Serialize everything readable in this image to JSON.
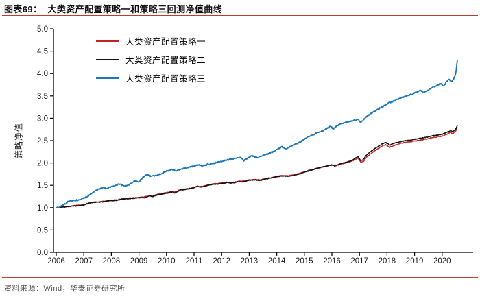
{
  "title": {
    "text": "图表69：  大类资产配置策略一和策略三回测净值曲线"
  },
  "footer": {
    "text": "资料来源：Wind，华泰证券研究所"
  },
  "colors": {
    "rule_red": "#be3c2d",
    "strategy1_red": "#c02420",
    "strategy2_black": "#111111",
    "strategy3_blue": "#1f77b4",
    "axis": "#000000"
  },
  "chart_data": {
    "type": "line",
    "title": "大类资产配置策略一和策略三回测净值曲线",
    "xlabel": "",
    "ylabel": "策略净值",
    "xlim": [
      2005.9,
      2021.1
    ],
    "ylim": [
      0.0,
      5.0
    ],
    "xticks": [
      2006,
      2007,
      2008,
      2009,
      2010,
      2011,
      2012,
      2013,
      2014,
      2015,
      2016,
      2017,
      2018,
      2019,
      2020
    ],
    "yticks": [
      0.0,
      0.5,
      1.0,
      1.5,
      2.0,
      2.5,
      3.0,
      3.5,
      4.0,
      4.5,
      5.0
    ],
    "grid": false,
    "legend_position": "upper-left",
    "series": [
      {
        "key": "strategy-1",
        "name": "大类资产配置策略一",
        "color": "#c02420",
        "width": 1.5,
        "jitter": 0.008,
        "points": [
          [
            2006.0,
            1.0
          ],
          [
            2006.25,
            1.01
          ],
          [
            2006.5,
            1.03
          ],
          [
            2006.75,
            1.05
          ],
          [
            2007.0,
            1.07
          ],
          [
            2007.2,
            1.11
          ],
          [
            2007.4,
            1.13
          ],
          [
            2007.6,
            1.13
          ],
          [
            2007.8,
            1.15
          ],
          [
            2008.0,
            1.17
          ],
          [
            2008.2,
            1.17
          ],
          [
            2008.4,
            1.2
          ],
          [
            2008.6,
            1.21
          ],
          [
            2008.8,
            1.22
          ],
          [
            2009.0,
            1.23
          ],
          [
            2009.2,
            1.24
          ],
          [
            2009.4,
            1.27
          ],
          [
            2009.5,
            1.27
          ],
          [
            2009.7,
            1.3
          ],
          [
            2009.9,
            1.32
          ],
          [
            2010.0,
            1.34
          ],
          [
            2010.2,
            1.36
          ],
          [
            2010.3,
            1.35
          ],
          [
            2010.5,
            1.4
          ],
          [
            2010.7,
            1.42
          ],
          [
            2010.9,
            1.44
          ],
          [
            2011.0,
            1.46
          ],
          [
            2011.1,
            1.48
          ],
          [
            2011.3,
            1.47
          ],
          [
            2011.5,
            1.51
          ],
          [
            2011.7,
            1.53
          ],
          [
            2011.9,
            1.54
          ],
          [
            2012.0,
            1.55
          ],
          [
            2012.2,
            1.57
          ],
          [
            2012.4,
            1.56
          ],
          [
            2012.6,
            1.59
          ],
          [
            2012.8,
            1.59
          ],
          [
            2013.0,
            1.62
          ],
          [
            2013.2,
            1.63
          ],
          [
            2013.4,
            1.62
          ],
          [
            2013.6,
            1.65
          ],
          [
            2013.8,
            1.67
          ],
          [
            2014.0,
            1.7
          ],
          [
            2014.2,
            1.72
          ],
          [
            2014.4,
            1.71
          ],
          [
            2014.6,
            1.73
          ],
          [
            2014.8,
            1.76
          ],
          [
            2015.0,
            1.8
          ],
          [
            2015.2,
            1.84
          ],
          [
            2015.4,
            1.87
          ],
          [
            2015.6,
            1.9
          ],
          [
            2015.8,
            1.93
          ],
          [
            2016.0,
            1.95
          ],
          [
            2016.1,
            1.93
          ],
          [
            2016.3,
            1.97
          ],
          [
            2016.5,
            2.0
          ],
          [
            2016.7,
            2.03
          ],
          [
            2016.85,
            2.08
          ],
          [
            2016.95,
            2.11
          ],
          [
            2017.05,
            2.01
          ],
          [
            2017.15,
            2.04
          ],
          [
            2017.25,
            2.13
          ],
          [
            2017.35,
            2.17
          ],
          [
            2017.5,
            2.25
          ],
          [
            2017.65,
            2.31
          ],
          [
            2017.8,
            2.37
          ],
          [
            2017.95,
            2.41
          ],
          [
            2018.1,
            2.35
          ],
          [
            2018.25,
            2.39
          ],
          [
            2018.4,
            2.42
          ],
          [
            2018.6,
            2.45
          ],
          [
            2018.8,
            2.47
          ],
          [
            2019.0,
            2.49
          ],
          [
            2019.2,
            2.51
          ],
          [
            2019.4,
            2.53
          ],
          [
            2019.6,
            2.56
          ],
          [
            2019.8,
            2.58
          ],
          [
            2020.0,
            2.6
          ],
          [
            2020.15,
            2.64
          ],
          [
            2020.3,
            2.68
          ],
          [
            2020.4,
            2.66
          ],
          [
            2020.5,
            2.72
          ],
          [
            2020.55,
            2.79
          ]
        ]
      },
      {
        "key": "strategy-2",
        "name": "大类资产配置策略二",
        "color": "#111111",
        "width": 1.5,
        "jitter": 0.008,
        "points": [
          [
            2006.0,
            1.0
          ],
          [
            2006.25,
            1.01
          ],
          [
            2006.5,
            1.03
          ],
          [
            2006.75,
            1.04
          ],
          [
            2007.0,
            1.06
          ],
          [
            2007.2,
            1.1
          ],
          [
            2007.4,
            1.12
          ],
          [
            2007.6,
            1.12
          ],
          [
            2007.8,
            1.14
          ],
          [
            2008.0,
            1.16
          ],
          [
            2008.2,
            1.16
          ],
          [
            2008.4,
            1.19
          ],
          [
            2008.6,
            1.2
          ],
          [
            2008.8,
            1.21
          ],
          [
            2009.0,
            1.22
          ],
          [
            2009.2,
            1.22
          ],
          [
            2009.4,
            1.26
          ],
          [
            2009.5,
            1.25
          ],
          [
            2009.7,
            1.29
          ],
          [
            2009.9,
            1.31
          ],
          [
            2010.0,
            1.32
          ],
          [
            2010.2,
            1.35
          ],
          [
            2010.3,
            1.33
          ],
          [
            2010.5,
            1.39
          ],
          [
            2010.7,
            1.41
          ],
          [
            2010.9,
            1.43
          ],
          [
            2011.0,
            1.45
          ],
          [
            2011.1,
            1.47
          ],
          [
            2011.3,
            1.46
          ],
          [
            2011.5,
            1.5
          ],
          [
            2011.7,
            1.52
          ],
          [
            2011.9,
            1.53
          ],
          [
            2012.0,
            1.54
          ],
          [
            2012.2,
            1.56
          ],
          [
            2012.4,
            1.55
          ],
          [
            2012.6,
            1.58
          ],
          [
            2012.8,
            1.58
          ],
          [
            2013.0,
            1.61
          ],
          [
            2013.2,
            1.62
          ],
          [
            2013.4,
            1.61
          ],
          [
            2013.6,
            1.64
          ],
          [
            2013.8,
            1.66
          ],
          [
            2014.0,
            1.69
          ],
          [
            2014.2,
            1.71
          ],
          [
            2014.4,
            1.7
          ],
          [
            2014.6,
            1.72
          ],
          [
            2014.8,
            1.75
          ],
          [
            2015.0,
            1.79
          ],
          [
            2015.2,
            1.83
          ],
          [
            2015.4,
            1.87
          ],
          [
            2015.6,
            1.9
          ],
          [
            2015.8,
            1.93
          ],
          [
            2016.0,
            1.96
          ],
          [
            2016.1,
            1.94
          ],
          [
            2016.3,
            1.98
          ],
          [
            2016.5,
            2.01
          ],
          [
            2016.7,
            2.05
          ],
          [
            2016.85,
            2.11
          ],
          [
            2016.95,
            2.14
          ],
          [
            2017.05,
            2.05
          ],
          [
            2017.15,
            2.08
          ],
          [
            2017.25,
            2.18
          ],
          [
            2017.35,
            2.22
          ],
          [
            2017.5,
            2.3
          ],
          [
            2017.65,
            2.36
          ],
          [
            2017.8,
            2.42
          ],
          [
            2017.95,
            2.46
          ],
          [
            2018.1,
            2.4
          ],
          [
            2018.25,
            2.44
          ],
          [
            2018.4,
            2.46
          ],
          [
            2018.6,
            2.49
          ],
          [
            2018.8,
            2.51
          ],
          [
            2019.0,
            2.53
          ],
          [
            2019.2,
            2.55
          ],
          [
            2019.4,
            2.57
          ],
          [
            2019.6,
            2.6
          ],
          [
            2019.8,
            2.62
          ],
          [
            2020.0,
            2.64
          ],
          [
            2020.15,
            2.68
          ],
          [
            2020.3,
            2.72
          ],
          [
            2020.4,
            2.7
          ],
          [
            2020.5,
            2.76
          ],
          [
            2020.55,
            2.84
          ]
        ]
      },
      {
        "key": "strategy-3",
        "name": "大类资产配置策略三",
        "color": "#1f77b4",
        "width": 1.8,
        "jitter": 0.014,
        "points": [
          [
            2006.0,
            1.0
          ],
          [
            2006.15,
            1.02
          ],
          [
            2006.3,
            1.08
          ],
          [
            2006.45,
            1.14
          ],
          [
            2006.6,
            1.16
          ],
          [
            2006.8,
            1.17
          ],
          [
            2007.0,
            1.21
          ],
          [
            2007.15,
            1.26
          ],
          [
            2007.3,
            1.33
          ],
          [
            2007.5,
            1.4
          ],
          [
            2007.7,
            1.45
          ],
          [
            2007.8,
            1.43
          ],
          [
            2007.95,
            1.46
          ],
          [
            2008.1,
            1.49
          ],
          [
            2008.3,
            1.53
          ],
          [
            2008.5,
            1.47
          ],
          [
            2008.65,
            1.52
          ],
          [
            2008.85,
            1.6
          ],
          [
            2009.0,
            1.58
          ],
          [
            2009.15,
            1.68
          ],
          [
            2009.3,
            1.74
          ],
          [
            2009.45,
            1.7
          ],
          [
            2009.6,
            1.72
          ],
          [
            2009.8,
            1.76
          ],
          [
            2010.0,
            1.82
          ],
          [
            2010.2,
            1.85
          ],
          [
            2010.35,
            1.82
          ],
          [
            2010.5,
            1.86
          ],
          [
            2010.7,
            1.88
          ],
          [
            2010.85,
            1.91
          ],
          [
            2011.0,
            1.93
          ],
          [
            2011.15,
            1.96
          ],
          [
            2011.3,
            1.93
          ],
          [
            2011.5,
            1.97
          ],
          [
            2011.7,
            1.99
          ],
          [
            2011.9,
            2.02
          ],
          [
            2012.1,
            2.05
          ],
          [
            2012.3,
            2.08
          ],
          [
            2012.5,
            2.11
          ],
          [
            2012.7,
            2.12
          ],
          [
            2012.8,
            2.05
          ],
          [
            2012.95,
            2.11
          ],
          [
            2013.1,
            2.16
          ],
          [
            2013.3,
            2.12
          ],
          [
            2013.5,
            2.17
          ],
          [
            2013.7,
            2.21
          ],
          [
            2013.9,
            2.26
          ],
          [
            2014.05,
            2.32
          ],
          [
            2014.2,
            2.36
          ],
          [
            2014.35,
            2.31
          ],
          [
            2014.5,
            2.37
          ],
          [
            2014.7,
            2.43
          ],
          [
            2014.85,
            2.47
          ],
          [
            2015.0,
            2.53
          ],
          [
            2015.2,
            2.6
          ],
          [
            2015.4,
            2.65
          ],
          [
            2015.6,
            2.7
          ],
          [
            2015.8,
            2.76
          ],
          [
            2015.95,
            2.82
          ],
          [
            2016.05,
            2.76
          ],
          [
            2016.2,
            2.84
          ],
          [
            2016.4,
            2.88
          ],
          [
            2016.6,
            2.92
          ],
          [
            2016.8,
            2.95
          ],
          [
            2016.95,
            2.98
          ],
          [
            2017.05,
            2.9
          ],
          [
            2017.2,
            3.0
          ],
          [
            2017.35,
            3.08
          ],
          [
            2017.5,
            3.14
          ],
          [
            2017.65,
            3.19
          ],
          [
            2017.8,
            3.25
          ],
          [
            2017.95,
            3.3
          ],
          [
            2018.1,
            3.35
          ],
          [
            2018.3,
            3.4
          ],
          [
            2018.5,
            3.45
          ],
          [
            2018.7,
            3.5
          ],
          [
            2018.9,
            3.54
          ],
          [
            2019.05,
            3.58
          ],
          [
            2019.2,
            3.62
          ],
          [
            2019.35,
            3.58
          ],
          [
            2019.5,
            3.63
          ],
          [
            2019.65,
            3.69
          ],
          [
            2019.8,
            3.73
          ],
          [
            2019.95,
            3.77
          ],
          [
            2020.05,
            3.71
          ],
          [
            2020.15,
            3.81
          ],
          [
            2020.25,
            3.87
          ],
          [
            2020.35,
            3.81
          ],
          [
            2020.45,
            3.92
          ],
          [
            2020.5,
            4.02
          ],
          [
            2020.55,
            4.3
          ]
        ]
      }
    ]
  }
}
